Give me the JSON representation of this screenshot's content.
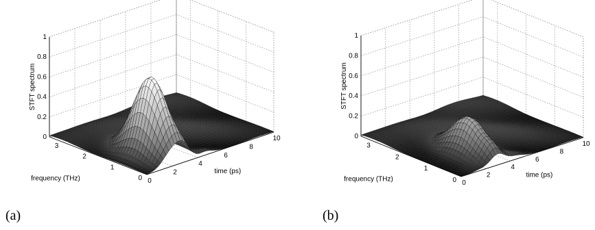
{
  "chart_data": [
    {
      "panel_label": "(a)",
      "type": "surface",
      "xlabel": "time (ps)",
      "ylabel": "frequency (THz)",
      "zlabel": "STFT spectrum",
      "xlim": [
        0,
        10
      ],
      "ylim": [
        0,
        3.5
      ],
      "zlim": [
        0,
        1
      ],
      "xticks": [
        "0",
        "2",
        "4",
        "6",
        "8",
        "10"
      ],
      "yticks": [
        "0",
        "1",
        "2",
        "3"
      ],
      "zticks": [
        "0",
        "0.2",
        "0.4",
        "0.6",
        "0.8",
        "1"
      ],
      "grid": true,
      "peak": {
        "time": 2.3,
        "frequency": 0.9,
        "value": 0.78
      },
      "colormap": "gray"
    },
    {
      "panel_label": "(b)",
      "type": "surface",
      "xlabel": "time (ps)",
      "ylabel": "frequency (THz)",
      "zlabel": "STFT spectrum",
      "xlim": [
        0,
        10
      ],
      "ylim": [
        0,
        3.5
      ],
      "zlim": [
        0,
        1
      ],
      "xticks": [
        "0",
        "2",
        "4",
        "6",
        "8",
        "10"
      ],
      "yticks": [
        "0",
        "1",
        "2",
        "3"
      ],
      "zticks": [
        "0",
        "0.2",
        "0.4",
        "0.6",
        "0.8",
        "1"
      ],
      "grid": true,
      "peak": {
        "time": 3.0,
        "frequency": 1.0,
        "value": 0.36
      },
      "colormap": "gray"
    }
  ]
}
